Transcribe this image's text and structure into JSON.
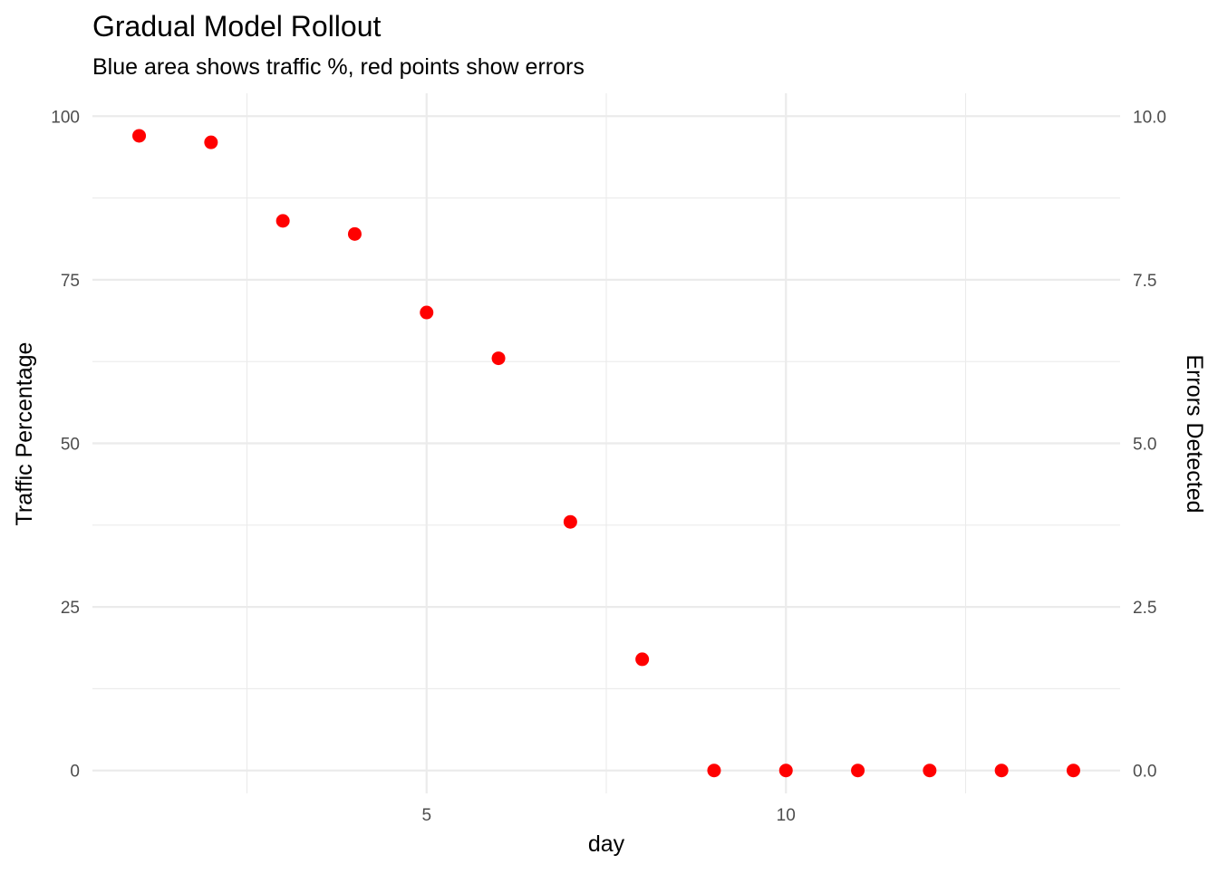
{
  "chart_data": {
    "type": "scatter",
    "title": "Gradual Model Rollout",
    "subtitle": "Blue area shows traffic %, red points show errors",
    "xlabel": "day",
    "ylabel": "Traffic Percentage",
    "y2label": "Errors Detected",
    "xlim": [
      0.35,
      14.65
    ],
    "ylim": [
      -3.5,
      103.5
    ],
    "y2lim": [
      -0.35,
      10.35
    ],
    "x_ticks": [
      5,
      10
    ],
    "x_tick_labels": [
      "5",
      "10"
    ],
    "y_ticks": [
      0,
      25,
      50,
      75,
      100
    ],
    "y_tick_labels": [
      "0",
      "25",
      "50",
      "75",
      "100"
    ],
    "y2_ticks": [
      0,
      2.5,
      5,
      7.5,
      10
    ],
    "y2_tick_labels": [
      "0.0",
      "2.5",
      "5.0",
      "7.5",
      "10.0"
    ],
    "grid": true,
    "legend": "none",
    "point_color": "#ff0000",
    "series": [
      {
        "axis": "right",
        "x": [
          1,
          2,
          3,
          4,
          5,
          6,
          7,
          8,
          9,
          10,
          11,
          12,
          13,
          14
        ],
        "values": [
          9.7,
          9.6,
          8.4,
          8.2,
          7.0,
          6.3,
          3.8,
          1.7,
          0,
          0,
          0,
          0,
          0,
          0
        ]
      }
    ]
  }
}
